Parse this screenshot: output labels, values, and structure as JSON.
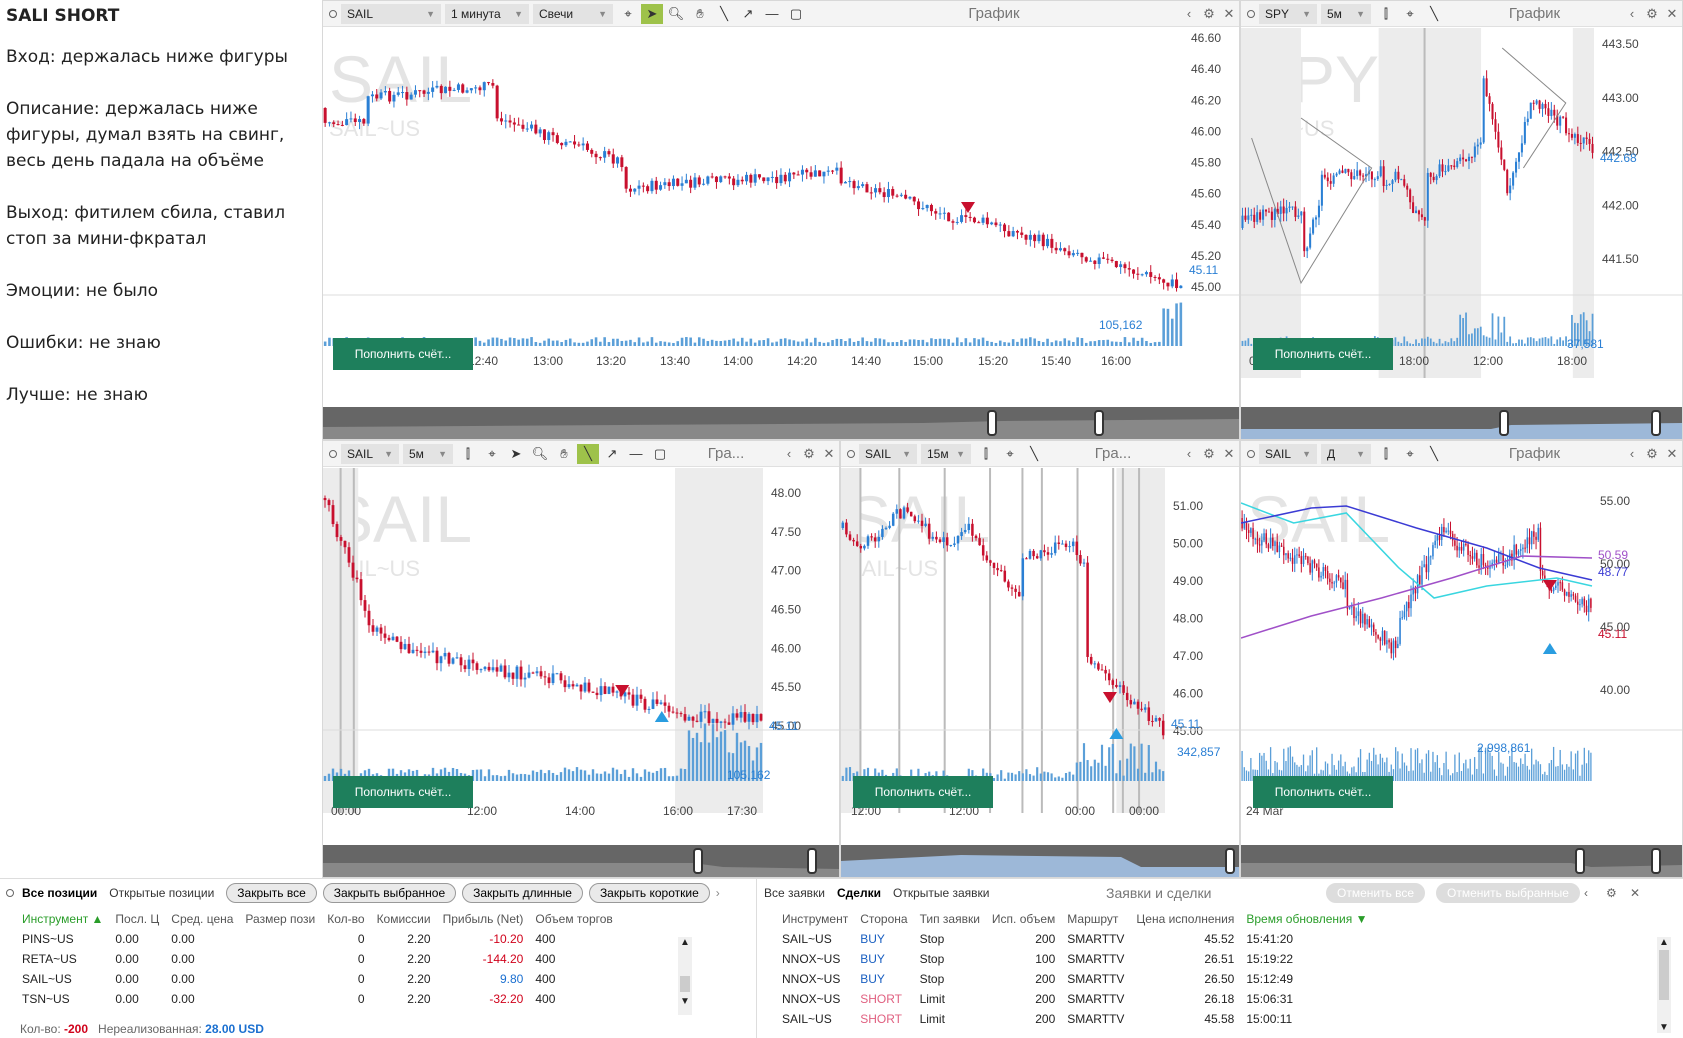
{
  "notes": {
    "title": "SALI SHORT",
    "lines": [
      "Вход: держалась ниже фигуры",
      "Описание: держалась ниже фигуры, думал взять на свинг, весь день падала на объёме",
      "Выход: фитилем сбила, ставил стоп за мини-фкратал",
      "Эмоции: не было",
      "Ошибки: не знаю",
      "Лучше: не знаю"
    ]
  },
  "fund_label": "Пополнить счёт...",
  "charts": {
    "c1": {
      "symbol": "SAIL",
      "interval": "1 минута",
      "type": "Свечи",
      "title": "График",
      "wm": "SAIL",
      "wm2": "SAIL~US",
      "yticks": [
        "46.60",
        "46.40",
        "46.20",
        "46.00",
        "45.80",
        "45.60",
        "45.40",
        "45.20",
        "45.00"
      ],
      "price": "45.11",
      "volume": "105,162",
      "xticks": [
        "12:00",
        "12:20",
        "12:40",
        "13:00",
        "13:20",
        "13:40",
        "14:00",
        "14:20",
        "14:40",
        "15:00",
        "15:20",
        "15:40",
        "16:00"
      ]
    },
    "c2": {
      "symbol": "SPY",
      "interval": "5м",
      "title": "График",
      "wm": "SPY",
      "wm2": "SPY~US",
      "yticks": [
        "443.50",
        "443.00",
        "442.50",
        "442.00",
        "441.50"
      ],
      "price": "442.68",
      "volume": "37,581",
      "xticks": [
        "06:00",
        "12:00",
        "18:00",
        "12:00",
        "18:00"
      ]
    },
    "c3": {
      "symbol": "SAIL",
      "interval": "5м",
      "title": "Гра...",
      "wm": "SAIL",
      "wm2": "SAIL~US",
      "yticks": [
        "48.00",
        "47.50",
        "47.00",
        "46.50",
        "46.00",
        "45.50",
        "45.00"
      ],
      "price": "45.11",
      "volume": "105,162",
      "xticks": [
        "00:00",
        "12:00",
        "14:00",
        "16:00",
        "17:30"
      ]
    },
    "c4": {
      "symbol": "SAIL",
      "interval": "15м",
      "title": "Гра...",
      "wm": "SAIL",
      "wm2": "SAIL~US",
      "yticks": [
        "51.00",
        "50.00",
        "49.00",
        "48.00",
        "47.00",
        "46.00",
        "45.00"
      ],
      "price": "45.11",
      "volume": "342,857",
      "xticks": [
        "12:00",
        "12:00",
        "00:00",
        "00:00"
      ]
    },
    "c5": {
      "symbol": "SAIL",
      "interval": "Д",
      "title": "График",
      "wm": "SAIL",
      "wm2": "",
      "yticks": [
        "55.00",
        "50.00",
        "45.00",
        "40.00"
      ],
      "price1": "50.59",
      "price2": "48.77",
      "price3": "45.11",
      "volume": "2,998,861",
      "xticks": [
        "24 Mar"
      ]
    }
  },
  "positions": {
    "tabs": [
      "Все позиции",
      "Открытые позиции"
    ],
    "buttons": [
      "Закрыть все",
      "Закрыть выбранное",
      "Закрыть длинные",
      "Закрыть короткие"
    ],
    "headers": [
      "Инструмент",
      "Посл. Ц",
      "Сред. цена",
      "Размер пози",
      "Кол-во",
      "Комиссии",
      "Прибыль (Net)",
      "Объем торгов"
    ],
    "rows": [
      [
        "PINS~US",
        "0.00",
        "0.00",
        "",
        "0",
        "2.20",
        "-10.20",
        "400"
      ],
      [
        "RETA~US",
        "0.00",
        "0.00",
        "",
        "0",
        "2.20",
        "-144.20",
        "400"
      ],
      [
        "SAIL~US",
        "0.00",
        "0.00",
        "",
        "0",
        "2.20",
        "9.80",
        "400"
      ],
      [
        "TSN~US",
        "0.00",
        "0.00",
        "",
        "0",
        "2.20",
        "-32.20",
        "400"
      ]
    ],
    "qty_label": "Кол-во:",
    "qty_value": "-200",
    "unreal_label": "Нереализованная:",
    "unreal_value": "28.00 USD"
  },
  "orders": {
    "tabs": [
      "Все заявки",
      "Сделки",
      "Открытые заявки"
    ],
    "title": "Заявки и сделки",
    "buttons": [
      "Отменить все",
      "Отменить выбранные"
    ],
    "headers": [
      "Инструмент",
      "Сторона",
      "Тип заявки",
      "Исп. объем",
      "Маршрут",
      "Цена исполнения",
      "Время обновления"
    ],
    "rows": [
      [
        "SAIL~US",
        "BUY",
        "Stop",
        "200",
        "SMARTTV",
        "45.52",
        "15:41:20"
      ],
      [
        "NNOX~US",
        "BUY",
        "Stop",
        "100",
        "SMARTTV",
        "26.51",
        "15:19:22"
      ],
      [
        "NNOX~US",
        "BUY",
        "Stop",
        "200",
        "SMARTTV",
        "26.50",
        "15:12:49"
      ],
      [
        "NNOX~US",
        "SHORT",
        "Limit",
        "200",
        "SMARTTV",
        "26.18",
        "15:06:31"
      ],
      [
        "SAIL~US",
        "SHORT",
        "Limit",
        "200",
        "SMARTTV",
        "45.58",
        "15:00:11"
      ]
    ]
  },
  "colors": {
    "up": "#2a7fd4",
    "down": "#c8102e",
    "fund": "#1e7f5c",
    "accent": "#9ec24a"
  }
}
